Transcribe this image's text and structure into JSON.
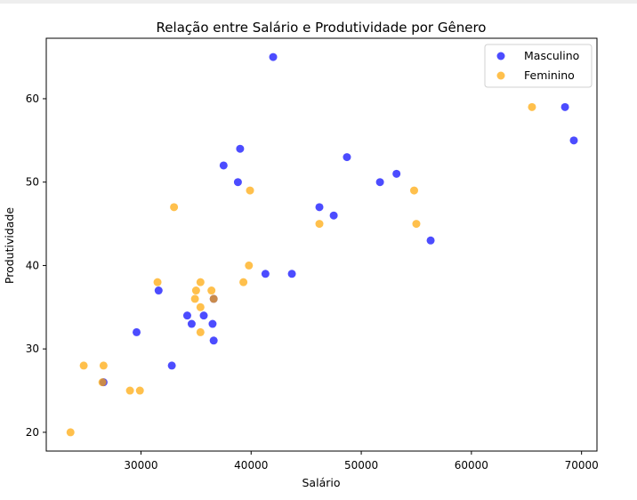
{
  "chart_data": {
    "type": "scatter",
    "title": "Relação entre Salário e Produtividade por Gênero",
    "xlabel": "Salário",
    "ylabel": "Produtividade",
    "xlim": [
      21400,
      71400
    ],
    "ylim": [
      17750,
      67250
    ],
    "ylim_units": [
      17.75,
      67.25
    ],
    "xticks": [
      30000,
      40000,
      50000,
      60000,
      70000
    ],
    "yticks": [
      20,
      30,
      40,
      50,
      60
    ],
    "grid": false,
    "legend_position": "top-right",
    "series": [
      {
        "name": "Masculino",
        "color": "#0000ff",
        "points": [
          [
            42000,
            65
          ],
          [
            68500,
            59
          ],
          [
            69300,
            55
          ],
          [
            39000,
            54
          ],
          [
            48700,
            53
          ],
          [
            37500,
            52
          ],
          [
            53200,
            51
          ],
          [
            38800,
            50
          ],
          [
            51700,
            50
          ],
          [
            46200,
            47
          ],
          [
            47500,
            46
          ],
          [
            56300,
            43
          ],
          [
            41300,
            39
          ],
          [
            43700,
            39
          ],
          [
            31600,
            37
          ],
          [
            36600,
            36
          ],
          [
            34200,
            34
          ],
          [
            35700,
            34
          ],
          [
            34600,
            33
          ],
          [
            36500,
            33
          ],
          [
            29600,
            32
          ],
          [
            36600,
            31
          ],
          [
            32800,
            28
          ],
          [
            26600,
            26
          ]
        ]
      },
      {
        "name": "Feminino",
        "color": "#ffa500",
        "points": [
          [
            65500,
            59
          ],
          [
            39900,
            49
          ],
          [
            54800,
            49
          ],
          [
            33000,
            47
          ],
          [
            46200,
            45
          ],
          [
            55000,
            45
          ],
          [
            39800,
            40
          ],
          [
            31500,
            38
          ],
          [
            35400,
            38
          ],
          [
            39300,
            38
          ],
          [
            35000,
            37
          ],
          [
            36400,
            37
          ],
          [
            34900,
            36
          ],
          [
            36600,
            36
          ],
          [
            35400,
            35
          ],
          [
            35400,
            32
          ],
          [
            24800,
            28
          ],
          [
            26600,
            28
          ],
          [
            26500,
            26
          ],
          [
            29000,
            25
          ],
          [
            29900,
            25
          ],
          [
            23600,
            20
          ]
        ]
      }
    ]
  }
}
